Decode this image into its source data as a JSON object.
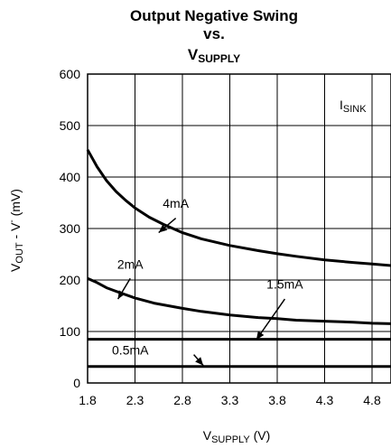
{
  "chart_data": {
    "type": "line",
    "title_lines": [
      "Output Negative Swing",
      "vs."
    ],
    "title_var": {
      "main": "V",
      "sub": "SUPPLY"
    },
    "xlabel": {
      "main": "V",
      "sub": "SUPPLY",
      "rest": " (V)"
    },
    "ylabel": {
      "main": "V",
      "sub": "OUT",
      "rest": " - V",
      "sup": "-",
      "unit": " (mV)"
    },
    "legend_title": {
      "main": "I",
      "sub": "SINK"
    },
    "xlim": [
      1.8,
      5.0
    ],
    "ylim": [
      0,
      600
    ],
    "xticks": [
      1.8,
      2.3,
      2.8,
      3.3,
      3.8,
      4.3,
      4.8
    ],
    "xtick_labels": [
      "1.8",
      "2.3",
      "2.8",
      "3.3",
      "3.8",
      "4.3",
      "4.8"
    ],
    "yticks": [
      0,
      100,
      200,
      300,
      400,
      500,
      600
    ],
    "ytick_labels": [
      "0",
      "100",
      "200",
      "300",
      "400",
      "500",
      "600"
    ],
    "grid": true,
    "series": [
      {
        "name": "4mA",
        "x": [
          1.8,
          1.9,
          2.0,
          2.1,
          2.2,
          2.3,
          2.45,
          2.6,
          2.8,
          3.0,
          3.3,
          3.6,
          3.8,
          4.0,
          4.3,
          4.6,
          4.8,
          5.0
        ],
        "y": [
          453,
          420,
          393,
          372,
          355,
          340,
          322,
          308,
          292,
          280,
          267,
          257,
          251,
          246,
          239,
          234,
          231,
          228
        ]
      },
      {
        "name": "2mA",
        "x": [
          1.8,
          1.9,
          2.0,
          2.1,
          2.3,
          2.5,
          2.8,
          3.0,
          3.3,
          3.6,
          3.8,
          4.0,
          4.3,
          4.6,
          4.8,
          5.0
        ],
        "y": [
          203,
          195,
          185,
          178,
          165,
          155,
          145,
          139,
          132,
          127,
          125,
          122,
          120,
          118,
          116,
          115
        ]
      },
      {
        "name": "1.5mA",
        "x": [
          1.8,
          5.0
        ],
        "y": [
          85,
          85
        ]
      },
      {
        "name": "0.5mA",
        "x": [
          1.8,
          5.0
        ],
        "y": [
          32,
          32
        ]
      }
    ],
    "annotations": [
      {
        "text": "4mA",
        "label_at": [
          2.73,
          340
        ],
        "arrow_from": [
          2.73,
          320
        ],
        "arrow_to": [
          2.55,
          292
        ]
      },
      {
        "text": "2mA",
        "label_at": [
          2.25,
          222
        ],
        "arrow_from": [
          2.25,
          203
        ],
        "arrow_to": [
          2.12,
          163
        ]
      },
      {
        "text": "1.5mA",
        "label_at": [
          3.88,
          183
        ],
        "arrow_from": [
          3.88,
          163
        ],
        "arrow_to": [
          3.58,
          84
        ]
      },
      {
        "text": "0.5mA",
        "label_at": [
          2.25,
          55
        ],
        "arrow_from": [
          2.92,
          55
        ],
        "arrow_to": [
          3.02,
          34
        ]
      }
    ]
  }
}
